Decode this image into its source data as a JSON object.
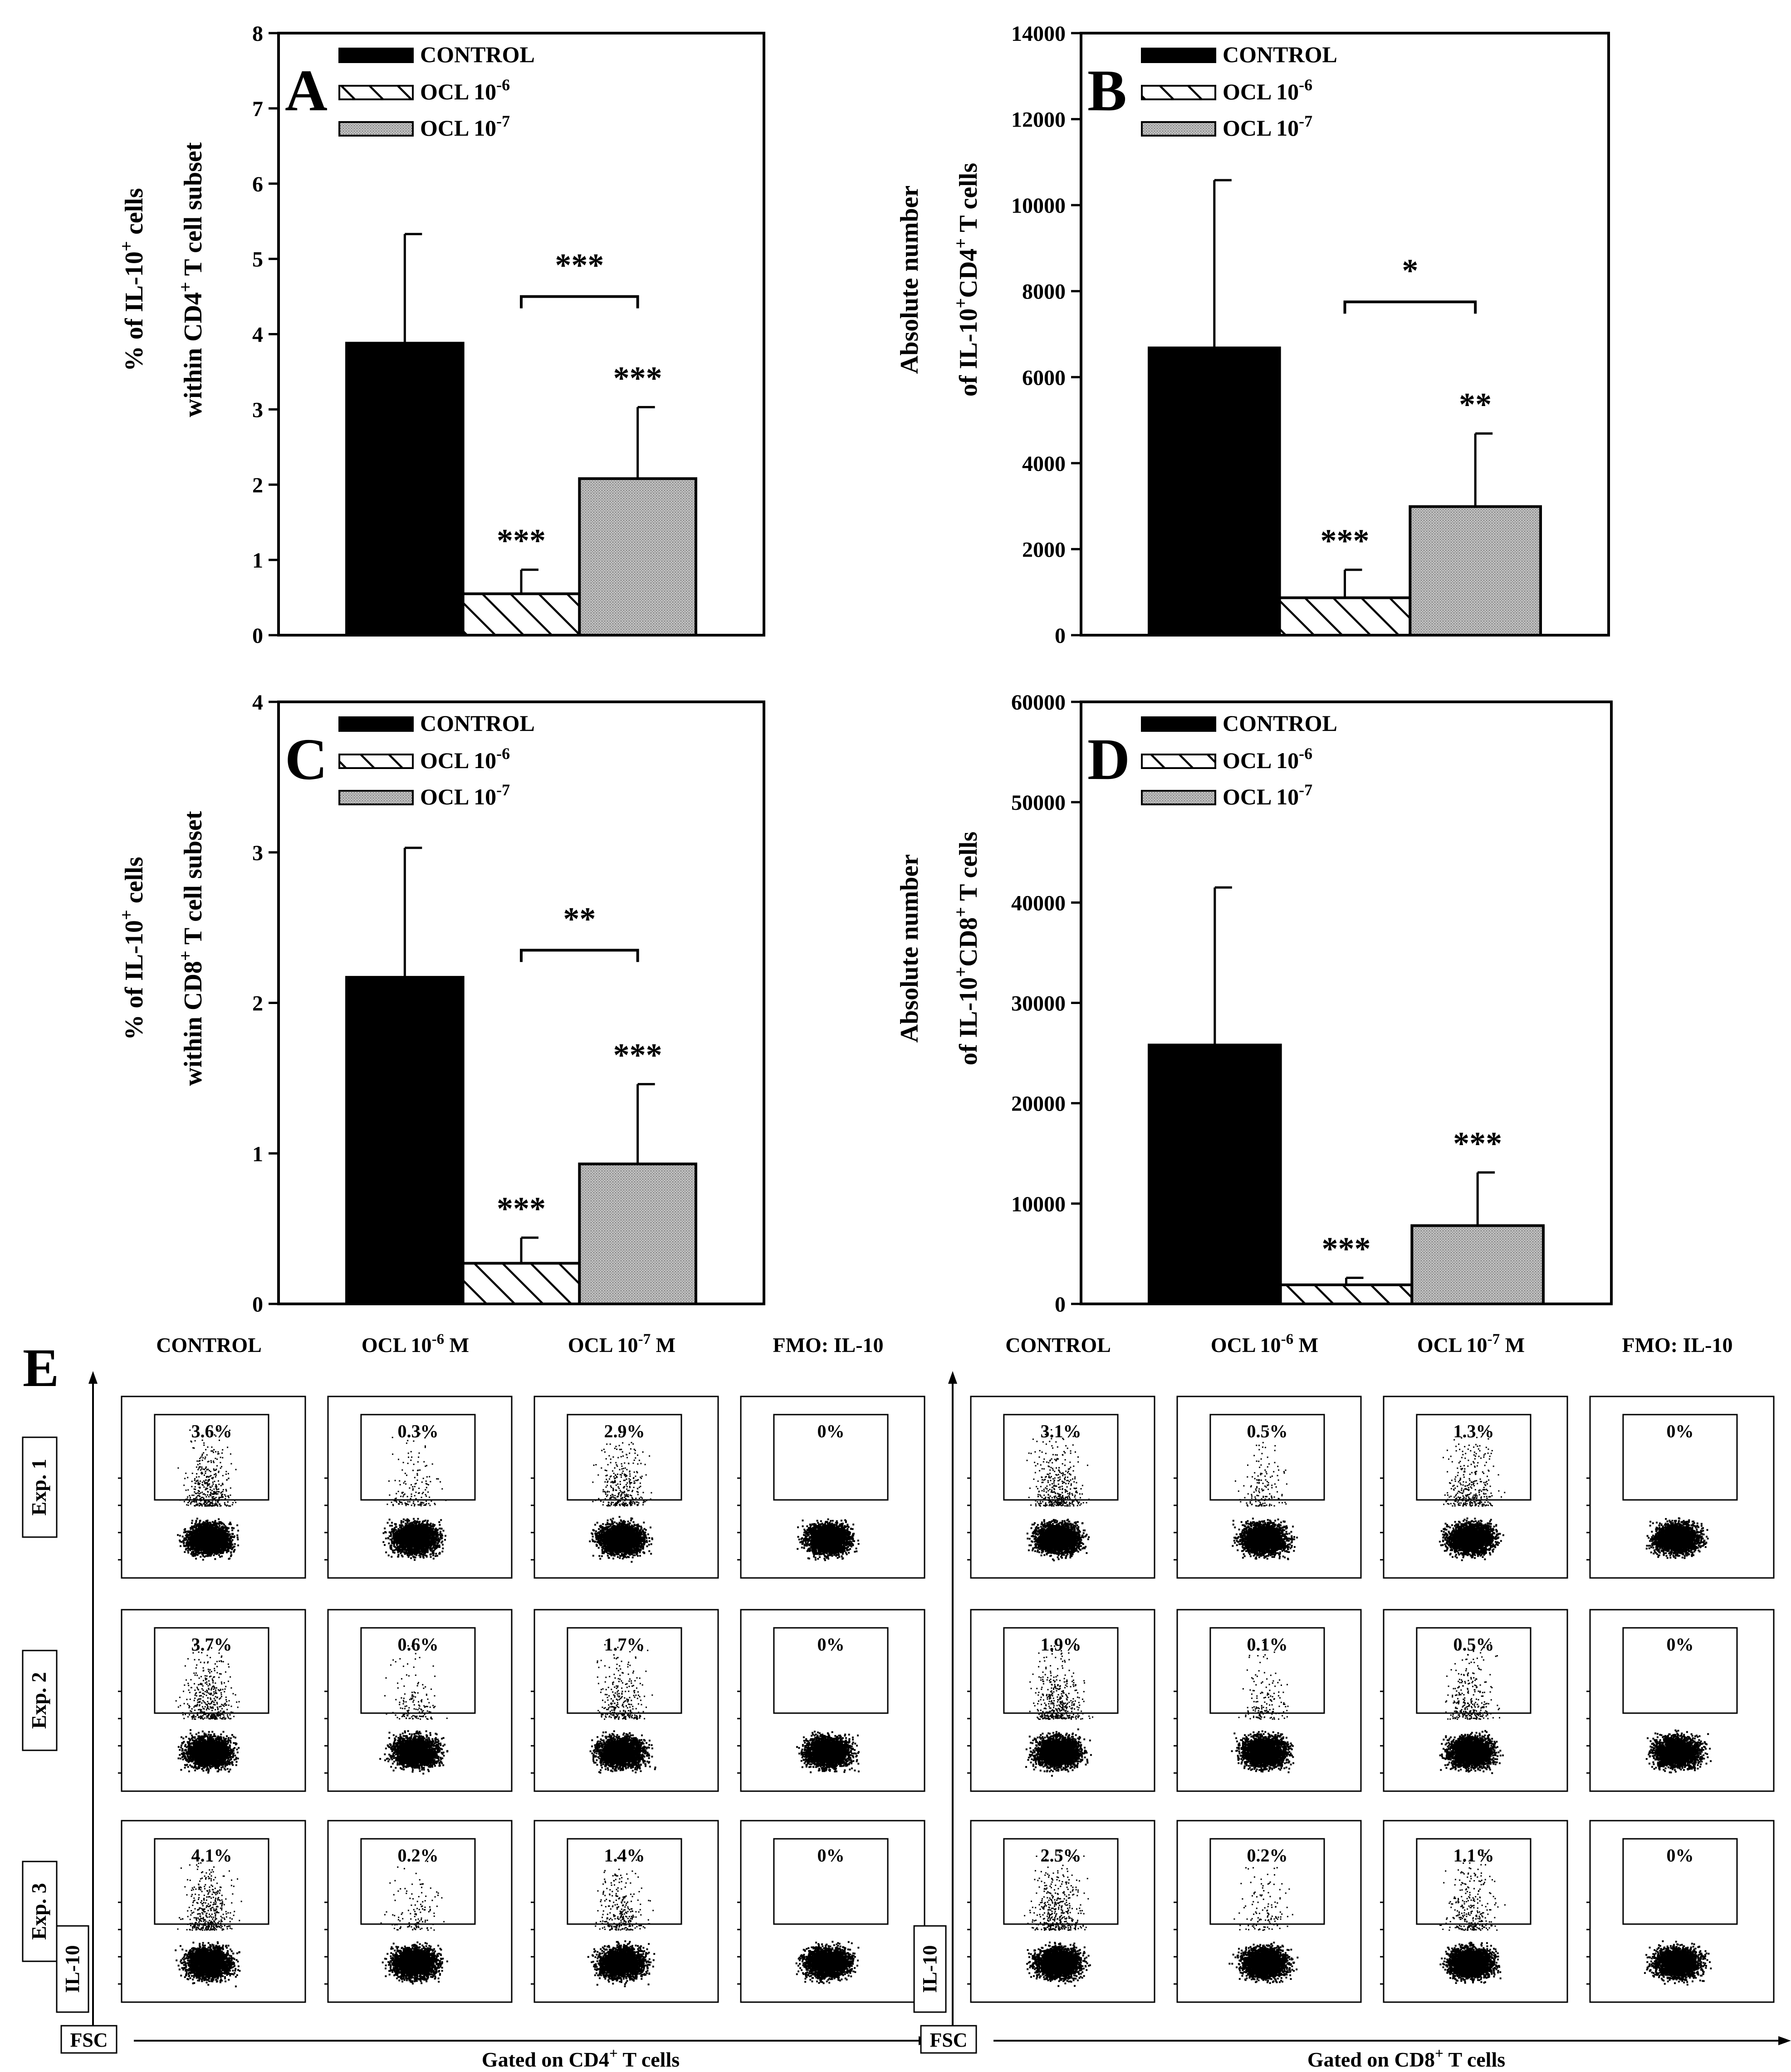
{
  "legend": {
    "control": "CONTROL",
    "ocl6": "OCL 10",
    "ocl6_exp": "-6",
    "ocl7": "OCL 10",
    "ocl7_exp": "-7"
  },
  "chart_data": [
    {
      "type": "bar",
      "panel": "A",
      "ylim": [
        0,
        8
      ],
      "yticks": [
        0,
        1,
        2,
        3,
        4,
        5,
        6,
        7,
        8
      ],
      "tick_labels": [
        "0",
        "1",
        "2",
        "3",
        "4",
        "5",
        "6",
        "7",
        "8"
      ],
      "ylabel_line1": [
        "% of IL-10",
        "+",
        " cells"
      ],
      "ylabel_line2": [
        "within CD4",
        "+",
        " T cell subset"
      ],
      "categories": [
        "CONTROL",
        "OCL 10-6",
        "OCL 10-7"
      ],
      "values": [
        3.88,
        0.55,
        2.08
      ],
      "errors": [
        1.45,
        0.32,
        0.95
      ],
      "bar_sig": [
        "",
        "***",
        "***"
      ],
      "bracket_sig": "***",
      "bracket_y": 4.5
    },
    {
      "type": "bar",
      "panel": "B",
      "ylim": [
        0,
        14000
      ],
      "yticks": [
        0,
        2000,
        4000,
        6000,
        8000,
        10000,
        12000,
        14000
      ],
      "tick_labels": [
        "0",
        "2000",
        "4000",
        "6000",
        "8000",
        "10000",
        "12000",
        "14000"
      ],
      "ylabel_line1": [
        "Absolute number"
      ],
      "ylabel_line2": [
        "of IL-10",
        "+",
        "CD4",
        "+",
        " T cells"
      ],
      "categories": [
        "CONTROL",
        "OCL 10-6",
        "OCL 10-7"
      ],
      "values": [
        6680,
        870,
        2990
      ],
      "errors": [
        3900,
        650,
        1700
      ],
      "bar_sig": [
        "",
        "***",
        "**"
      ],
      "bracket_sig": "*",
      "bracket_y": 7750
    },
    {
      "type": "bar",
      "panel": "C",
      "ylim": [
        0,
        4
      ],
      "yticks": [
        0,
        1,
        2,
        3,
        4
      ],
      "tick_labels": [
        "0",
        "1",
        "2",
        "3",
        "4"
      ],
      "ylabel_line1": [
        "% of IL-10",
        "+",
        " cells"
      ],
      "ylabel_line2": [
        "within CD8",
        "+",
        " T cell subset"
      ],
      "categories": [
        "CONTROL",
        "OCL 10-6",
        "OCL 10-7"
      ],
      "values": [
        2.17,
        0.27,
        0.93
      ],
      "errors": [
        0.86,
        0.17,
        0.53
      ],
      "bar_sig": [
        "",
        "***",
        "***"
      ],
      "bracket_sig": "**",
      "bracket_y": 2.35
    },
    {
      "type": "bar",
      "panel": "D",
      "ylim": [
        0,
        60000
      ],
      "yticks": [
        0,
        10000,
        20000,
        30000,
        40000,
        50000,
        60000
      ],
      "tick_labels": [
        "0",
        "10000",
        "20000",
        "30000",
        "40000",
        "50000",
        "60000"
      ],
      "ylabel_line1": [
        "Absolute number"
      ],
      "ylabel_line2": [
        "of IL-10",
        "+",
        "CD8",
        "+",
        " T cells"
      ],
      "categories": [
        "CONTROL",
        "OCL 10-6",
        "OCL 10-7"
      ],
      "values": [
        25800,
        1900,
        7800
      ],
      "errors": [
        15700,
        700,
        5300
      ],
      "bar_sig": [
        "",
        "***",
        "***"
      ],
      "bracket_sig": "",
      "bracket_y": null
    }
  ],
  "flow": {
    "panel_letter": "E",
    "columns": [
      "CONTROL",
      "OCL 10",
      "OCL 10",
      "FMO: IL-10"
    ],
    "column_exp": [
      "",
      "-6",
      "-7",
      ""
    ],
    "column_unit": [
      "",
      " M",
      " M",
      ""
    ],
    "rows": [
      "Exp. 1",
      "Exp. 2",
      "Exp. 3"
    ],
    "y_axis_label": "IL-10",
    "x_axis_label": "FSC",
    "cd4": {
      "gated_label": "Gated on CD4",
      "gated_sup": "+",
      "gated_tail": " T cells",
      "percentages": [
        [
          "3.6%",
          "0.3%",
          "2.9%",
          "0%"
        ],
        [
          "3.7%",
          "0.6%",
          "1.7%",
          "0%"
        ],
        [
          "4.1%",
          "0.2%",
          "1.4%",
          "0%"
        ]
      ]
    },
    "cd8": {
      "gated_label": "Gated on CD8",
      "gated_sup": "+",
      "gated_tail": " T cells",
      "percentages": [
        [
          "3.1%",
          "0.5%",
          "1.3%",
          "0%"
        ],
        [
          "1.9%",
          "0.1%",
          "0.5%",
          "0%"
        ],
        [
          "2.5%",
          "0.2%",
          "1.1%",
          "0%"
        ]
      ]
    }
  }
}
